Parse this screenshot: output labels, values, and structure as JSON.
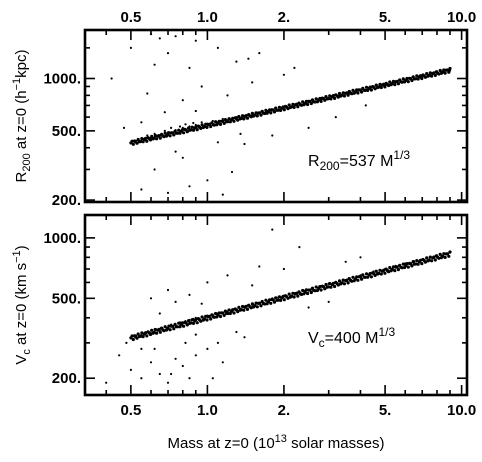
{
  "chart_data": [
    {
      "type": "scatter",
      "panel": "top",
      "xscale": "log",
      "yscale": "log",
      "xlim": [
        0.33,
        10.5
      ],
      "ylim": [
        195,
        1900
      ],
      "x_ticks": [
        0.5,
        1.0,
        2.0,
        5.0,
        10.0
      ],
      "x_tick_labels": [
        "0.5",
        "1.0",
        "2.",
        "5.",
        "10.0"
      ],
      "x_tick_labels_position": "top",
      "y_ticks": [
        200,
        500,
        1000
      ],
      "y_tick_labels": [
        "200.",
        "500.",
        "1000."
      ],
      "ylabel": {
        "main": "R",
        "sub": "200",
        "mid": " at z=0 (h",
        "sup": "−1",
        "end": "kpc)"
      },
      "annotation": {
        "main": "R",
        "sub": "200",
        "mid": "=537 M",
        "sup": "1/3"
      },
      "relation": {
        "coefficient": 537,
        "exponent": 0.3333
      },
      "points": [
        [
          0.52,
          430
        ],
        [
          0.55,
          450
        ],
        [
          0.58,
          470
        ],
        [
          0.6,
          455
        ],
        [
          0.62,
          480
        ],
        [
          0.65,
          470
        ],
        [
          0.68,
          500
        ],
        [
          0.7,
          490
        ],
        [
          0.72,
          520
        ],
        [
          0.75,
          505
        ],
        [
          0.78,
          530
        ],
        [
          0.8,
          520
        ],
        [
          0.82,
          545
        ],
        [
          0.85,
          530
        ],
        [
          0.88,
          555
        ],
        [
          0.9,
          540
        ],
        [
          0.95,
          560
        ],
        [
          1.0,
          550
        ],
        [
          1.05,
          570
        ],
        [
          1.1,
          560
        ],
        [
          1.15,
          585
        ],
        [
          1.2,
          575
        ],
        [
          1.3,
          600
        ],
        [
          1.4,
          590
        ],
        [
          1.5,
          615
        ],
        [
          1.6,
          630
        ],
        [
          1.7,
          640
        ],
        [
          1.8,
          655
        ],
        [
          1.9,
          660
        ],
        [
          2.0,
          670
        ],
        [
          2.2,
          690
        ],
        [
          2.4,
          715
        ],
        [
          2.6,
          730
        ],
        [
          2.8,
          755
        ],
        [
          3.0,
          770
        ],
        [
          3.3,
          795
        ],
        [
          3.6,
          820
        ],
        [
          4.0,
          850
        ],
        [
          4.5,
          885
        ],
        [
          5.0,
          915
        ],
        [
          5.5,
          950
        ],
        [
          6.0,
          975
        ],
        [
          6.5,
          1000
        ],
        [
          7.0,
          1025
        ],
        [
          7.5,
          1045
        ],
        [
          8.0,
          1070
        ],
        [
          8.5,
          1090
        ],
        [
          9.0,
          1110
        ],
        [
          0.6,
          1800
        ],
        [
          0.75,
          1750
        ],
        [
          0.9,
          1650
        ],
        [
          0.62,
          1200
        ],
        [
          0.7,
          1400
        ],
        [
          0.85,
          1150
        ],
        [
          1.1,
          1500
        ],
        [
          1.3,
          1250
        ],
        [
          0.95,
          900
        ],
        [
          0.58,
          820
        ],
        [
          0.8,
          750
        ],
        [
          1.2,
          800
        ],
        [
          1.5,
          950
        ],
        [
          0.68,
          640
        ],
        [
          0.9,
          650
        ],
        [
          1.1,
          430
        ],
        [
          1.4,
          420
        ],
        [
          0.75,
          380
        ],
        [
          0.62,
          300
        ],
        [
          1.0,
          260
        ],
        [
          1.25,
          290
        ],
        [
          0.85,
          240
        ],
        [
          0.55,
          230
        ],
        [
          0.7,
          220
        ],
        [
          1.15,
          215
        ],
        [
          1.6,
          1400
        ],
        [
          2.0,
          1050
        ],
        [
          1.8,
          470
        ],
        [
          2.5,
          520
        ],
        [
          3.2,
          600
        ],
        [
          2.2,
          1150
        ],
        [
          4.2,
          700
        ],
        [
          0.5,
          1500
        ],
        [
          0.65,
          1700
        ],
        [
          1.45,
          1300
        ],
        [
          0.55,
          560
        ],
        [
          0.8,
          350
        ],
        [
          1.35,
          480
        ],
        [
          0.42,
          1000
        ],
        [
          0.47,
          520
        ]
      ]
    },
    {
      "type": "scatter",
      "panel": "bottom",
      "xscale": "log",
      "yscale": "log",
      "xlim": [
        0.33,
        10.5
      ],
      "ylim": [
        165,
        1300
      ],
      "x_ticks": [
        0.5,
        1.0,
        2.0,
        5.0,
        10.0
      ],
      "x_tick_labels": [
        "0.5",
        "1.0",
        "2.",
        "5.",
        "10.0"
      ],
      "y_ticks": [
        200,
        500,
        1000
      ],
      "y_tick_labels": [
        "200.",
        "500.",
        "1000."
      ],
      "ylabel": {
        "main": "V",
        "sub": "c",
        "mid": " at z=0 (km s",
        "sup": "−1",
        "end": ")"
      },
      "xlabel": {
        "main": "Mass at z=0 (10",
        "sup": "13",
        "end": " solar masses)"
      },
      "annotation": {
        "main": "V",
        "sub": "c",
        "mid": "=400 M",
        "sup": "1/3"
      },
      "relation": {
        "coefficient": 400,
        "exponent": 0.3333
      },
      "points": [
        [
          0.52,
          320
        ],
        [
          0.55,
          330
        ],
        [
          0.58,
          340
        ],
        [
          0.6,
          335
        ],
        [
          0.62,
          350
        ],
        [
          0.65,
          345
        ],
        [
          0.68,
          360
        ],
        [
          0.7,
          355
        ],
        [
          0.72,
          370
        ],
        [
          0.75,
          365
        ],
        [
          0.78,
          380
        ],
        [
          0.8,
          375
        ],
        [
          0.82,
          385
        ],
        [
          0.85,
          390
        ],
        [
          0.88,
          395
        ],
        [
          0.9,
          400
        ],
        [
          0.95,
          405
        ],
        [
          1.0,
          410
        ],
        [
          1.05,
          415
        ],
        [
          1.1,
          420
        ],
        [
          1.15,
          425
        ],
        [
          1.2,
          430
        ],
        [
          1.3,
          440
        ],
        [
          1.4,
          455
        ],
        [
          1.5,
          465
        ],
        [
          1.6,
          475
        ],
        [
          1.7,
          490
        ],
        [
          1.8,
          500
        ],
        [
          1.9,
          505
        ],
        [
          2.0,
          515
        ],
        [
          2.2,
          530
        ],
        [
          2.4,
          545
        ],
        [
          2.6,
          560
        ],
        [
          2.8,
          575
        ],
        [
          3.0,
          590
        ],
        [
          3.3,
          610
        ],
        [
          3.6,
          630
        ],
        [
          4.0,
          650
        ],
        [
          4.5,
          680
        ],
        [
          5.0,
          700
        ],
        [
          5.5,
          725
        ],
        [
          6.0,
          745
        ],
        [
          6.5,
          765
        ],
        [
          7.0,
          780
        ],
        [
          7.5,
          800
        ],
        [
          8.0,
          815
        ],
        [
          8.5,
          830
        ],
        [
          9.0,
          845
        ],
        [
          0.5,
          220
        ],
        [
          0.55,
          200
        ],
        [
          0.6,
          240
        ],
        [
          0.65,
          210
        ],
        [
          0.7,
          190
        ],
        [
          0.75,
          250
        ],
        [
          0.8,
          230
        ],
        [
          0.85,
          200
        ],
        [
          0.9,
          260
        ],
        [
          1.0,
          280
        ],
        [
          1.1,
          300
        ],
        [
          0.6,
          500
        ],
        [
          0.7,
          550
        ],
        [
          0.75,
          480
        ],
        [
          0.85,
          520
        ],
        [
          1.0,
          600
        ],
        [
          1.2,
          650
        ],
        [
          1.5,
          580
        ],
        [
          2.0,
          700
        ],
        [
          2.5,
          450
        ],
        [
          3.0,
          480
        ],
        [
          4.0,
          800
        ],
        [
          1.8,
          1100
        ],
        [
          0.55,
          280
        ],
        [
          0.65,
          420
        ],
        [
          0.9,
          330
        ],
        [
          1.3,
          340
        ],
        [
          0.45,
          260
        ],
        [
          0.4,
          190
        ],
        [
          0.72,
          210
        ],
        [
          1.05,
          200
        ],
        [
          1.6,
          720
        ],
        [
          2.3,
          900
        ],
        [
          0.95,
          470
        ],
        [
          0.62,
          280
        ],
        [
          1.4,
          320
        ],
        [
          0.48,
          300
        ],
        [
          0.82,
          300
        ],
        [
          1.15,
          240
        ],
        [
          3.5,
          760
        ]
      ]
    }
  ]
}
